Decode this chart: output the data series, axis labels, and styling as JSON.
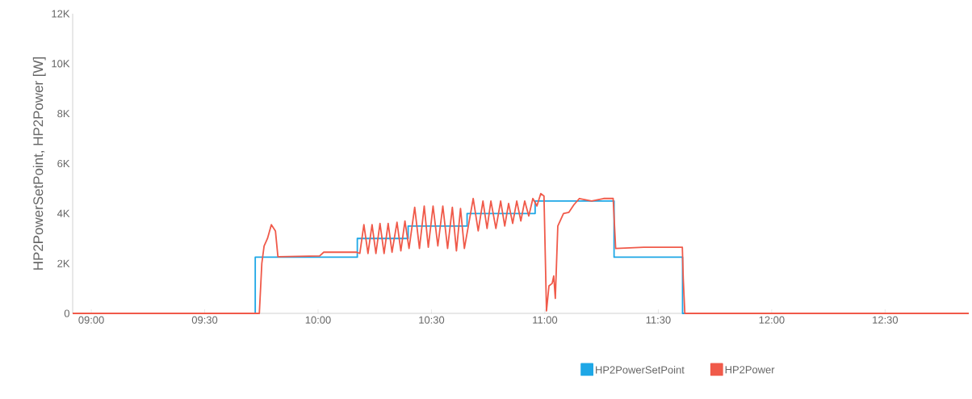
{
  "chart_data": {
    "type": "line",
    "ylabel": "HP2PowerSetPoint, HP2Power [W]",
    "xlim": [
      8.918,
      12.869
    ],
    "ylim": [
      0,
      12000
    ],
    "xticks": [
      {
        "value": 9,
        "label": "09:00"
      },
      {
        "value": 9.5,
        "label": "09:30"
      },
      {
        "value": 10,
        "label": "10:00"
      },
      {
        "value": 10.5,
        "label": "10:30"
      },
      {
        "value": 11,
        "label": "11:00"
      },
      {
        "value": 11.5,
        "label": "11:30"
      },
      {
        "value": 12,
        "label": "12:00"
      },
      {
        "value": 12.5,
        "label": "12:30"
      }
    ],
    "yticks": [
      0,
      {
        "value": 2000,
        "label": "2K"
      },
      {
        "value": 4000,
        "label": "4K"
      },
      {
        "value": 6000,
        "label": "6K"
      },
      {
        "value": 8000,
        "label": "8K"
      },
      {
        "value": 10000,
        "label": "10K"
      },
      {
        "value": 12000,
        "label": "12K"
      }
    ],
    "legend": "bottom",
    "grid": false,
    "marker": "none",
    "series": [
      {
        "name": "HP2PowerSetPoint",
        "type": "step",
        "color": "#1ea7e6",
        "x": [
          8.918,
          9.723,
          10.173,
          10.397,
          10.657,
          10.957,
          11.305,
          11.607,
          12.869
        ],
        "values": [
          0,
          2250,
          3000,
          3500,
          4000,
          4500,
          2250,
          0,
          0
        ]
      },
      {
        "name": "HP2Power",
        "type": "line",
        "color": "#f05a4a",
        "x": [
          8.918,
          9.741,
          9.752,
          9.762,
          9.777,
          9.794,
          9.812,
          9.823,
          10.007,
          10.025,
          10.17,
          10.184,
          10.202,
          10.22,
          10.238,
          10.255,
          10.273,
          10.291,
          10.309,
          10.326,
          10.348,
          10.365,
          10.383,
          10.401,
          10.426,
          10.447,
          10.468,
          10.486,
          10.507,
          10.528,
          10.55,
          10.571,
          10.592,
          10.61,
          10.628,
          10.645,
          10.684,
          10.706,
          10.727,
          10.745,
          10.762,
          10.784,
          10.805,
          10.823,
          10.84,
          10.858,
          10.876,
          10.894,
          10.911,
          10.929,
          10.947,
          10.965,
          10.982,
          10.996,
          11.007,
          11.018,
          11.032,
          11.039,
          11.046,
          11.057,
          11.082,
          11.106,
          11.128,
          11.152,
          11.206,
          11.259,
          11.301,
          11.312,
          11.436,
          11.606,
          11.61,
          11.617,
          12.869
        ],
        "values": [
          0,
          0,
          2000,
          2700,
          3000,
          3550,
          3300,
          2270,
          2300,
          2450,
          2450,
          2400,
          3550,
          2400,
          3550,
          2400,
          3600,
          2400,
          3600,
          2450,
          3650,
          2500,
          3700,
          2600,
          4250,
          2600,
          4300,
          2650,
          4300,
          2700,
          4300,
          2600,
          4250,
          2500,
          4200,
          2600,
          4600,
          3300,
          4500,
          3400,
          4500,
          3400,
          4500,
          3500,
          4400,
          3600,
          4500,
          3700,
          4500,
          3900,
          4600,
          4300,
          4800,
          4700,
          100,
          1100,
          1200,
          1500,
          600,
          3500,
          4000,
          4050,
          4350,
          4600,
          4500,
          4600,
          4600,
          2600,
          2650,
          2650,
          1400,
          0,
          0
        ]
      }
    ]
  }
}
